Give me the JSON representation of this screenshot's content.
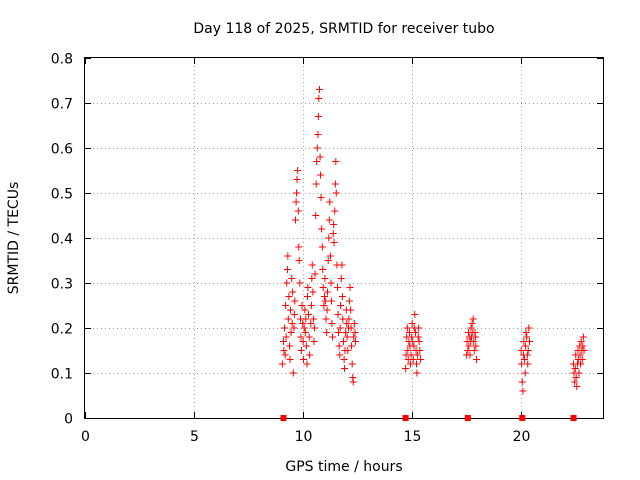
{
  "chart_data": {
    "type": "scatter",
    "title": "Day 118 of 2025, SRMTID for receiver tubo",
    "xlabel": "GPS time / hours",
    "ylabel": "SRMTID / TECUs",
    "xlim": [
      0,
      23.75
    ],
    "ylim": [
      0,
      0.8
    ],
    "xticks": [
      0,
      5,
      10,
      15,
      20
    ],
    "xtick_labels": [
      "0",
      "5",
      "10",
      "15",
      "20"
    ],
    "yticks": [
      0,
      0.1,
      0.2,
      0.3,
      0.4,
      0.5,
      0.6,
      0.7,
      0.8
    ],
    "ytick_labels": [
      "0",
      "0.1",
      "0.2",
      "0.3",
      "0.4",
      "0.5",
      "0.6",
      "0.7",
      "0.8"
    ],
    "grid": true,
    "marker": "+",
    "color": "#ff0000",
    "series": [
      {
        "name": "SRMTID",
        "points": [
          [
            9.05,
            0.12
          ],
          [
            9.1,
            0.17
          ],
          [
            9.12,
            0.15
          ],
          [
            9.15,
            0.2
          ],
          [
            9.18,
            0.14
          ],
          [
            9.2,
            0.25
          ],
          [
            9.22,
            0.18
          ],
          [
            9.25,
            0.3
          ],
          [
            9.28,
            0.33
          ],
          [
            9.3,
            0.36
          ],
          [
            9.32,
            0.22
          ],
          [
            9.35,
            0.27
          ],
          [
            9.38,
            0.16
          ],
          [
            9.4,
            0.13
          ],
          [
            9.42,
            0.24
          ],
          [
            9.45,
            0.19
          ],
          [
            9.48,
            0.31
          ],
          [
            9.5,
            0.21
          ],
          [
            9.52,
            0.28
          ],
          [
            9.55,
            0.1
          ],
          [
            9.58,
            0.2
          ],
          [
            9.6,
            0.23
          ],
          [
            9.62,
            0.26
          ],
          [
            9.65,
            0.44
          ],
          [
            9.68,
            0.48
          ],
          [
            9.7,
            0.5
          ],
          [
            9.72,
            0.53
          ],
          [
            9.75,
            0.55
          ],
          [
            9.78,
            0.46
          ],
          [
            9.8,
            0.38
          ],
          [
            9.82,
            0.35
          ],
          [
            9.85,
            0.3
          ],
          [
            9.88,
            0.22
          ],
          [
            9.9,
            0.18
          ],
          [
            9.92,
            0.15
          ],
          [
            9.95,
            0.25
          ],
          [
            9.98,
            0.21
          ],
          [
            10.0,
            0.17
          ],
          [
            10.02,
            0.13
          ],
          [
            10.05,
            0.2
          ],
          [
            10.08,
            0.24
          ],
          [
            10.1,
            0.19
          ],
          [
            10.12,
            0.22
          ],
          [
            10.15,
            0.16
          ],
          [
            10.18,
            0.12
          ],
          [
            10.2,
            0.27
          ],
          [
            10.22,
            0.29
          ],
          [
            10.25,
            0.23
          ],
          [
            10.28,
            0.18
          ],
          [
            10.3,
            0.14
          ],
          [
            10.35,
            0.21
          ],
          [
            10.38,
            0.25
          ],
          [
            10.4,
            0.31
          ],
          [
            10.42,
            0.34
          ],
          [
            10.45,
            0.28
          ],
          [
            10.48,
            0.22
          ],
          [
            10.5,
            0.17
          ],
          [
            10.52,
            0.2
          ],
          [
            10.55,
            0.32
          ],
          [
            10.58,
            0.45
          ],
          [
            10.6,
            0.52
          ],
          [
            10.62,
            0.57
          ],
          [
            10.65,
            0.6
          ],
          [
            10.68,
            0.63
          ],
          [
            10.7,
            0.67
          ],
          [
            10.72,
            0.71
          ],
          [
            10.75,
            0.73
          ],
          [
            10.78,
            0.58
          ],
          [
            10.8,
            0.54
          ],
          [
            10.82,
            0.49
          ],
          [
            10.85,
            0.42
          ],
          [
            10.88,
            0.38
          ],
          [
            10.9,
            0.33
          ],
          [
            10.92,
            0.29
          ],
          [
            10.95,
            0.25
          ],
          [
            10.98,
            0.27
          ],
          [
            11.0,
            0.31
          ],
          [
            11.02,
            0.26
          ],
          [
            11.05,
            0.22
          ],
          [
            11.08,
            0.19
          ],
          [
            11.1,
            0.24
          ],
          [
            11.12,
            0.28
          ],
          [
            11.15,
            0.35
          ],
          [
            11.18,
            0.4
          ],
          [
            11.2,
            0.44
          ],
          [
            11.22,
            0.48
          ],
          [
            11.25,
            0.36
          ],
          [
            11.28,
            0.3
          ],
          [
            11.3,
            0.26
          ],
          [
            11.32,
            0.21
          ],
          [
            11.35,
            0.18
          ],
          [
            11.38,
            0.41
          ],
          [
            11.4,
            0.43
          ],
          [
            11.42,
            0.39
          ],
          [
            11.45,
            0.46
          ],
          [
            11.48,
            0.52
          ],
          [
            11.5,
            0.57
          ],
          [
            11.52,
            0.5
          ],
          [
            11.55,
            0.34
          ],
          [
            11.58,
            0.29
          ],
          [
            11.6,
            0.23
          ],
          [
            11.62,
            0.19
          ],
          [
            11.65,
            0.16
          ],
          [
            11.68,
            0.14
          ],
          [
            11.7,
            0.2
          ],
          [
            11.72,
            0.25
          ],
          [
            11.75,
            0.31
          ],
          [
            11.78,
            0.34
          ],
          [
            11.8,
            0.27
          ],
          [
            11.82,
            0.22
          ],
          [
            11.85,
            0.17
          ],
          [
            11.88,
            0.13
          ],
          [
            11.9,
            0.11
          ],
          [
            11.92,
            0.15
          ],
          [
            11.95,
            0.19
          ],
          [
            11.98,
            0.24
          ],
          [
            12.0,
            0.21
          ],
          [
            12.02,
            0.18
          ],
          [
            12.05,
            0.15
          ],
          [
            12.08,
            0.2
          ],
          [
            12.1,
            0.22
          ],
          [
            12.12,
            0.26
          ],
          [
            12.15,
            0.29
          ],
          [
            12.18,
            0.24
          ],
          [
            12.2,
            0.2
          ],
          [
            12.22,
            0.16
          ],
          [
            12.25,
            0.12
          ],
          [
            12.28,
            0.09
          ],
          [
            12.3,
            0.08
          ],
          [
            12.32,
            0.18
          ],
          [
            12.35,
            0.21
          ],
          [
            12.38,
            0.19
          ],
          [
            12.4,
            0.17
          ],
          [
            14.7,
            0.11
          ],
          [
            14.72,
            0.14
          ],
          [
            14.75,
            0.18
          ],
          [
            14.78,
            0.2
          ],
          [
            14.8,
            0.15
          ],
          [
            14.82,
            0.13
          ],
          [
            14.85,
            0.17
          ],
          [
            14.88,
            0.19
          ],
          [
            14.9,
            0.16
          ],
          [
            14.92,
            0.12
          ],
          [
            14.95,
            0.14
          ],
          [
            14.98,
            0.18
          ],
          [
            15.0,
            0.21
          ],
          [
            15.02,
            0.17
          ],
          [
            15.05,
            0.13
          ],
          [
            15.08,
            0.16
          ],
          [
            15.1,
            0.2
          ],
          [
            15.12,
            0.23
          ],
          [
            15.15,
            0.19
          ],
          [
            15.18,
            0.15
          ],
          [
            15.2,
            0.12
          ],
          [
            15.22,
            0.1
          ],
          [
            15.25,
            0.14
          ],
          [
            15.28,
            0.18
          ],
          [
            15.3,
            0.2
          ],
          [
            15.32,
            0.17
          ],
          [
            15.35,
            0.15
          ],
          [
            15.38,
            0.13
          ],
          [
            17.5,
            0.14
          ],
          [
            17.52,
            0.17
          ],
          [
            17.55,
            0.15
          ],
          [
            17.58,
            0.19
          ],
          [
            17.6,
            0.16
          ],
          [
            17.62,
            0.18
          ],
          [
            17.65,
            0.14
          ],
          [
            17.68,
            0.17
          ],
          [
            17.7,
            0.2
          ],
          [
            17.72,
            0.18
          ],
          [
            17.75,
            0.21
          ],
          [
            17.78,
            0.19
          ],
          [
            17.8,
            0.22
          ],
          [
            17.82,
            0.17
          ],
          [
            17.85,
            0.15
          ],
          [
            17.88,
            0.19
          ],
          [
            17.9,
            0.18
          ],
          [
            17.92,
            0.16
          ],
          [
            17.95,
            0.13
          ],
          [
            20.0,
            0.15
          ],
          [
            20.02,
            0.12
          ],
          [
            20.05,
            0.08
          ],
          [
            20.08,
            0.06
          ],
          [
            20.1,
            0.14
          ],
          [
            20.12,
            0.17
          ],
          [
            20.15,
            0.13
          ],
          [
            20.18,
            0.1
          ],
          [
            20.2,
            0.16
          ],
          [
            20.22,
            0.19
          ],
          [
            20.25,
            0.18
          ],
          [
            20.28,
            0.14
          ],
          [
            20.3,
            0.12
          ],
          [
            20.32,
            0.15
          ],
          [
            20.35,
            0.2
          ],
          [
            20.38,
            0.17
          ],
          [
            22.4,
            0.12
          ],
          [
            22.42,
            0.1
          ],
          [
            22.45,
            0.08
          ],
          [
            22.48,
            0.11
          ],
          [
            22.5,
            0.14
          ],
          [
            22.52,
            0.09
          ],
          [
            22.55,
            0.07
          ],
          [
            22.58,
            0.12
          ],
          [
            22.6,
            0.15
          ],
          [
            22.62,
            0.13
          ],
          [
            22.65,
            0.1
          ],
          [
            22.68,
            0.16
          ],
          [
            22.7,
            0.14
          ],
          [
            22.72,
            0.12
          ],
          [
            22.75,
            0.17
          ],
          [
            22.78,
            0.15
          ],
          [
            22.8,
            0.13
          ],
          [
            22.82,
            0.16
          ],
          [
            22.85,
            0.18
          ],
          [
            22.88,
            0.15
          ]
        ]
      },
      {
        "name": "baseline markers",
        "points": [
          [
            9.1,
            0
          ],
          [
            14.7,
            0
          ],
          [
            17.55,
            0
          ],
          [
            20.05,
            0
          ],
          [
            22.4,
            0
          ]
        ]
      }
    ]
  }
}
